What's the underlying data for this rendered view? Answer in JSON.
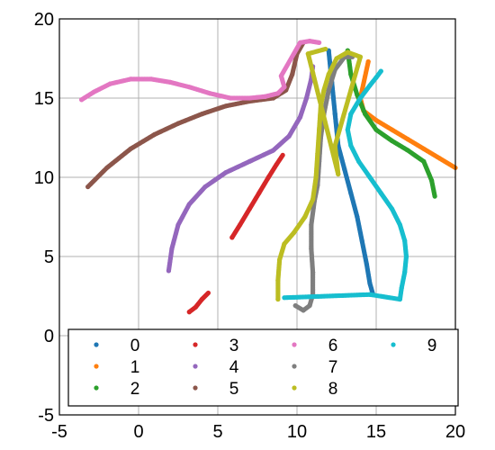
{
  "chart_data": {
    "type": "scatter",
    "title": "",
    "xlabel": "",
    "ylabel": "",
    "xlim": [
      -5,
      20
    ],
    "ylim": [
      -5,
      20
    ],
    "xticks": [
      -5,
      0,
      5,
      10,
      15,
      20
    ],
    "yticks": [
      -5,
      0,
      5,
      10,
      15,
      20
    ],
    "x_tick_labels": [
      "-5",
      "0",
      "5",
      "10",
      "15",
      "20"
    ],
    "y_tick_labels": [
      "-5",
      "0",
      "5",
      "10",
      "15",
      "20"
    ],
    "grid": true,
    "legend_position": "lower-center, 4 columns",
    "series": [
      {
        "name": "0",
        "color": "#1f77b4",
        "points": [
          [
            12.0,
            18.0
          ],
          [
            12.2,
            16.0
          ],
          [
            12.4,
            14.0
          ],
          [
            12.6,
            12.0
          ],
          [
            13.0,
            10.5
          ],
          [
            13.4,
            9.0
          ],
          [
            13.8,
            7.5
          ],
          [
            14.1,
            6.0
          ],
          [
            14.4,
            4.5
          ],
          [
            14.6,
            3.3
          ],
          [
            14.8,
            2.6
          ]
        ]
      },
      {
        "name": "1",
        "color": "#ff7f0e",
        "points": [
          [
            14.5,
            17.3
          ],
          [
            14.0,
            15.0
          ],
          [
            14.2,
            14.2
          ],
          [
            15.0,
            13.6
          ],
          [
            16.0,
            13.0
          ],
          [
            17.0,
            12.4
          ],
          [
            18.0,
            11.8
          ],
          [
            19.0,
            11.2
          ],
          [
            20.0,
            10.6
          ]
        ]
      },
      {
        "name": "2",
        "color": "#2ca02c",
        "points": [
          [
            13.2,
            18.0
          ],
          [
            13.4,
            16.5
          ],
          [
            13.8,
            15.2
          ],
          [
            14.3,
            14.0
          ],
          [
            15.0,
            13.0
          ],
          [
            16.0,
            12.3
          ],
          [
            17.0,
            11.7
          ],
          [
            18.0,
            11.0
          ],
          [
            18.5,
            9.8
          ],
          [
            18.7,
            8.8
          ]
        ]
      },
      {
        "name": "3",
        "color": "#d62728",
        "points": [
          [
            5.9,
            6.2
          ],
          [
            6.4,
            7.0
          ],
          [
            7.0,
            8.0
          ],
          [
            7.6,
            9.0
          ],
          [
            8.2,
            10.0
          ],
          [
            8.7,
            10.8
          ],
          [
            9.1,
            11.4
          ],
          [
            3.2,
            1.5
          ],
          [
            3.6,
            1.8
          ],
          [
            4.0,
            2.3
          ],
          [
            4.4,
            2.7
          ]
        ]
      },
      {
        "name": "4",
        "color": "#9467bd",
        "points": [
          [
            1.9,
            4.1
          ],
          [
            2.1,
            5.5
          ],
          [
            2.5,
            7.0
          ],
          [
            3.2,
            8.3
          ],
          [
            4.2,
            9.4
          ],
          [
            5.5,
            10.3
          ],
          [
            7.0,
            11.0
          ],
          [
            8.5,
            11.7
          ],
          [
            9.5,
            12.6
          ],
          [
            10.2,
            13.8
          ],
          [
            10.6,
            15.0
          ],
          [
            10.9,
            16.2
          ],
          [
            11.0,
            17.0
          ]
        ]
      },
      {
        "name": "5",
        "color": "#8c564b",
        "points": [
          [
            -3.2,
            9.4
          ],
          [
            -2.0,
            10.6
          ],
          [
            -0.5,
            11.8
          ],
          [
            1.0,
            12.7
          ],
          [
            2.5,
            13.4
          ],
          [
            4.0,
            14.0
          ],
          [
            5.5,
            14.5
          ],
          [
            7.0,
            14.8
          ],
          [
            8.5,
            15.0
          ],
          [
            9.3,
            15.5
          ],
          [
            9.7,
            16.5
          ],
          [
            10.0,
            17.8
          ],
          [
            10.4,
            18.5
          ]
        ]
      },
      {
        "name": "6",
        "color": "#e377c2",
        "points": [
          [
            -3.6,
            14.9
          ],
          [
            -2.8,
            15.4
          ],
          [
            -1.8,
            15.9
          ],
          [
            -0.5,
            16.2
          ],
          [
            0.8,
            16.2
          ],
          [
            2.0,
            16.0
          ],
          [
            3.2,
            15.7
          ],
          [
            4.5,
            15.3
          ],
          [
            5.8,
            15.0
          ],
          [
            7.0,
            15.0
          ],
          [
            8.0,
            15.1
          ],
          [
            8.8,
            15.3
          ],
          [
            9.2,
            15.7
          ],
          [
            9.0,
            16.4
          ],
          [
            10.2,
            18.5
          ],
          [
            10.8,
            18.6
          ],
          [
            11.4,
            18.5
          ]
        ]
      },
      {
        "name": "7",
        "color": "#7f7f7f",
        "points": [
          [
            9.9,
            1.9
          ],
          [
            10.4,
            1.6
          ],
          [
            10.8,
            1.9
          ],
          [
            11.0,
            2.6
          ],
          [
            11.0,
            4.0
          ],
          [
            10.9,
            5.5
          ],
          [
            10.9,
            7.0
          ],
          [
            11.1,
            8.5
          ],
          [
            11.3,
            9.5
          ],
          [
            11.4,
            11.0
          ],
          [
            11.5,
            12.5
          ],
          [
            11.7,
            14.0
          ],
          [
            12.0,
            15.5
          ],
          [
            12.4,
            16.8
          ],
          [
            13.0,
            17.6
          ],
          [
            13.5,
            17.6
          ]
        ]
      },
      {
        "name": "8",
        "color": "#bcbd22",
        "points": [
          [
            8.8,
            2.3
          ],
          [
            8.8,
            3.5
          ],
          [
            8.9,
            4.8
          ],
          [
            9.2,
            5.8
          ],
          [
            9.8,
            6.5
          ],
          [
            10.5,
            7.5
          ],
          [
            11.0,
            8.6
          ],
          [
            11.2,
            10.0
          ],
          [
            11.3,
            11.5
          ],
          [
            11.4,
            13.0
          ],
          [
            11.5,
            14.5
          ],
          [
            11.7,
            15.5
          ],
          [
            12.0,
            16.5
          ],
          [
            12.5,
            17.5
          ],
          [
            13.2,
            17.9
          ],
          [
            14.0,
            17.6
          ],
          [
            12.4,
            12.0
          ],
          [
            12.6,
            10.2
          ],
          [
            11.0,
            16.6
          ],
          [
            10.7,
            17.8
          ],
          [
            11.8,
            18.1
          ]
        ]
      },
      {
        "name": "9",
        "color": "#17becf",
        "points": [
          [
            15.3,
            16.7
          ],
          [
            15.0,
            16.3
          ],
          [
            14.6,
            15.8
          ],
          [
            14.0,
            15.0
          ],
          [
            13.4,
            14.0
          ],
          [
            13.2,
            13.0
          ],
          [
            13.4,
            12.0
          ],
          [
            13.9,
            11.0
          ],
          [
            14.6,
            10.0
          ],
          [
            15.3,
            9.0
          ],
          [
            16.0,
            8.0
          ],
          [
            16.5,
            7.0
          ],
          [
            16.8,
            6.0
          ],
          [
            16.9,
            5.0
          ],
          [
            16.8,
            4.0
          ],
          [
            16.6,
            3.0
          ],
          [
            16.5,
            2.3
          ],
          [
            14.6,
            2.6
          ],
          [
            9.2,
            2.4
          ]
        ]
      }
    ]
  }
}
